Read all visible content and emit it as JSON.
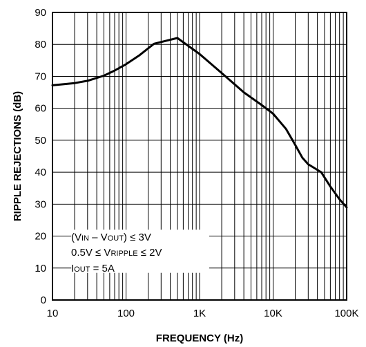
{
  "chart_data": {
    "type": "line",
    "xlabel": "FREQUENCY (Hz)",
    "ylabel": "RIPPLE REJECTIONS (dB)",
    "x_scale": "log",
    "xlim": [
      10,
      100000
    ],
    "ylim": [
      0,
      90
    ],
    "grid": true,
    "x_tick_labels": [
      "10",
      "100",
      "1K",
      "10K",
      "100K"
    ],
    "y_tick_labels": [
      "0",
      "10",
      "20",
      "30",
      "40",
      "50",
      "60",
      "70",
      "80",
      "90"
    ],
    "series": [
      {
        "x": [
          10,
          20,
          30,
          50,
          70,
          100,
          150,
          240,
          500,
          1000,
          2000,
          4000,
          7000,
          10000,
          15000,
          20000,
          25000,
          30000,
          45000,
          60000,
          80000,
          100000
        ],
        "y": [
          67.2,
          67.9,
          68.6,
          70.2,
          71.8,
          73.8,
          76.5,
          80.2,
          82,
          77,
          71,
          65,
          61,
          58.3,
          53.5,
          48.5,
          44.5,
          42.5,
          40,
          35.5,
          31.5,
          29
        ]
      }
    ],
    "annotations": [
      "(VIN – VOUT) ≤ 3V",
      "0.5V ≤ VRIPPLE ≤ 2V",
      "IOUT = 5A"
    ]
  },
  "annotation": {
    "line1": {
      "open": "(V",
      "sub1": "IN",
      "mid": " – V",
      "sub2": "OUT",
      "close": ") ≤ 3V"
    },
    "line2": {
      "pre": "0.5V ≤ V",
      "sub": "RIPPLE",
      "post": " ≤ 2V"
    },
    "line3": {
      "pre": "I",
      "sub": "OUT",
      "post": " = 5A"
    }
  }
}
